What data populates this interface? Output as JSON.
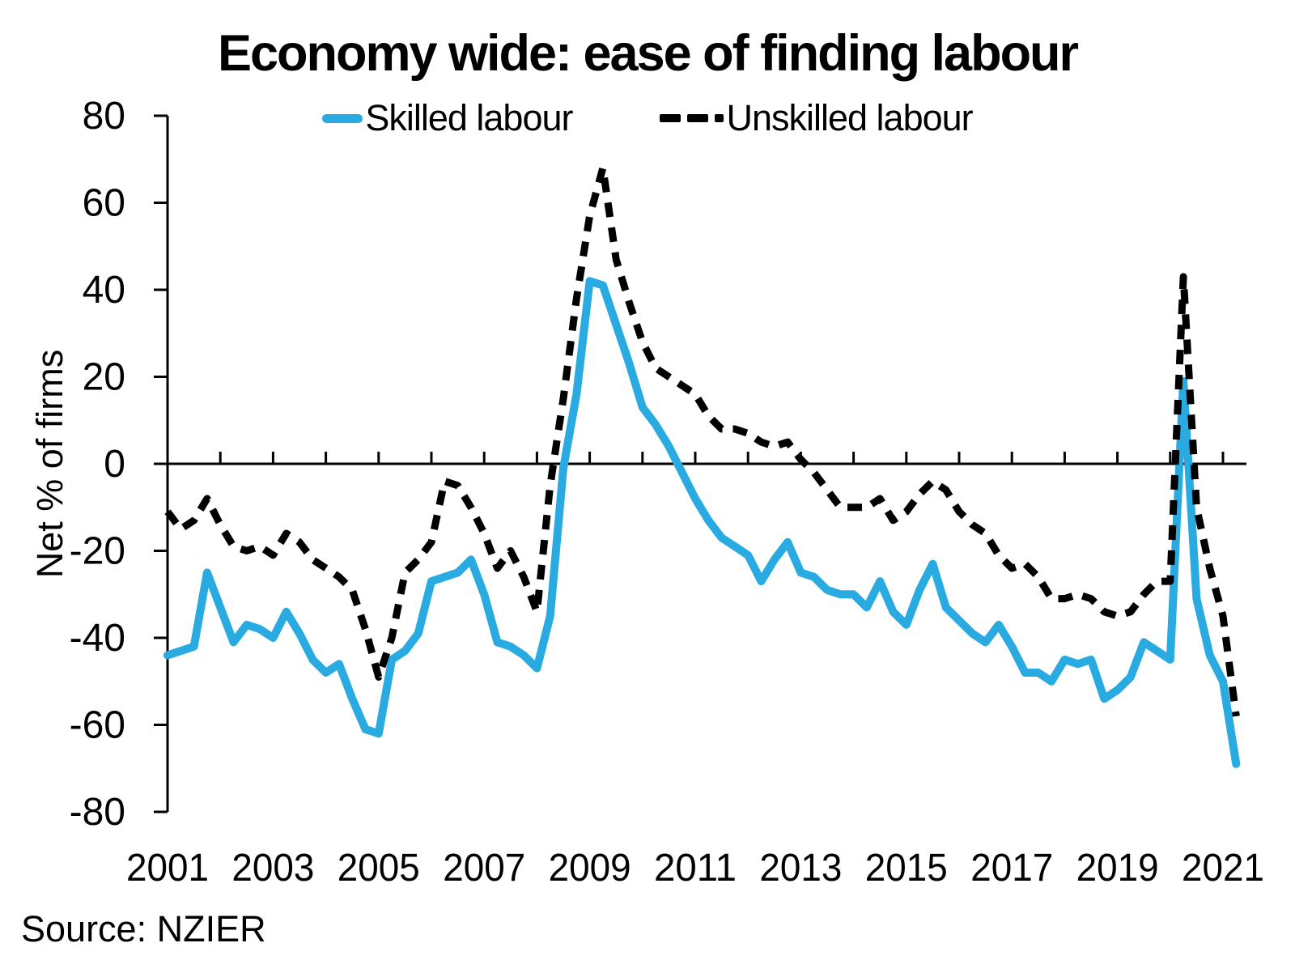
{
  "title": "Economy wide: ease of finding labour",
  "source": "Source: NZIER",
  "chart_data": {
    "type": "line",
    "title": "Economy wide: ease of finding labour",
    "xlabel": "",
    "ylabel": "Net % of firms",
    "ylim": [
      -80,
      80
    ],
    "ytick_step": 20,
    "grid": "off",
    "legend_position": "top-center",
    "x_axis": {
      "start_year": 2001,
      "end_year": 2021,
      "frequency": "quarterly",
      "first_point": "2001Q1",
      "last_point": "2021Q2",
      "tick_labels": [
        "2001",
        "2003",
        "2005",
        "2007",
        "2009",
        "2011",
        "2013",
        "2015",
        "2017",
        "2019",
        "2021"
      ]
    },
    "y_axis": {
      "tick_labels": [
        "-80",
        "-60",
        "-40",
        "-20",
        "0",
        "20",
        "40",
        "60",
        "80"
      ]
    },
    "series": [
      {
        "name": "Skilled labour",
        "color": "#29ABE2",
        "style": "solid",
        "values": [
          -44,
          -43,
          -42,
          -25,
          -33,
          -41,
          -37,
          -38,
          -40,
          -34,
          -39,
          -45,
          -48,
          -46,
          -54,
          -61,
          -62,
          -45,
          -43,
          -39,
          -27,
          -26,
          -25,
          -22,
          -30,
          -41,
          -42,
          -44,
          -47,
          -35,
          -1,
          16,
          42,
          41,
          32,
          23,
          13,
          9,
          4,
          -2,
          -8,
          -13,
          -17,
          -19,
          -21,
          -27,
          -22,
          -18,
          -25,
          -26,
          -29,
          -30,
          -30,
          -33,
          -27,
          -34,
          -37,
          -29,
          -23,
          -33,
          -36,
          -39,
          -41,
          -37,
          -42,
          -48,
          -48,
          -50,
          -45,
          -46,
          -45,
          -54,
          -52,
          -49,
          -41,
          -43,
          -45,
          19,
          -31,
          -44,
          -50,
          -69
        ]
      },
      {
        "name": "Unskilled labour",
        "color": "#000000",
        "style": "dashed",
        "values": [
          -11,
          -15,
          -13,
          -8,
          -14,
          -19,
          -20,
          -19,
          -21,
          -16,
          -18,
          -22,
          -24,
          -26,
          -29,
          -38,
          -49,
          -40,
          -25,
          -22,
          -18,
          -4,
          -5,
          -10,
          -16,
          -24,
          -20,
          -26,
          -34,
          -5,
          15,
          38,
          57,
          68,
          47,
          37,
          28,
          22,
          20,
          18,
          16,
          11,
          8,
          8,
          7,
          5,
          4,
          5,
          1,
          -2,
          -6,
          -10,
          -10,
          -10,
          -8,
          -13,
          -11,
          -7,
          -4,
          -6,
          -11,
          -14,
          -16,
          -21,
          -24,
          -23,
          -26,
          -31,
          -31,
          -30,
          -31,
          -34,
          -35,
          -34,
          -30,
          -27,
          -27,
          43,
          -10,
          -24,
          -35,
          -58
        ]
      }
    ]
  }
}
